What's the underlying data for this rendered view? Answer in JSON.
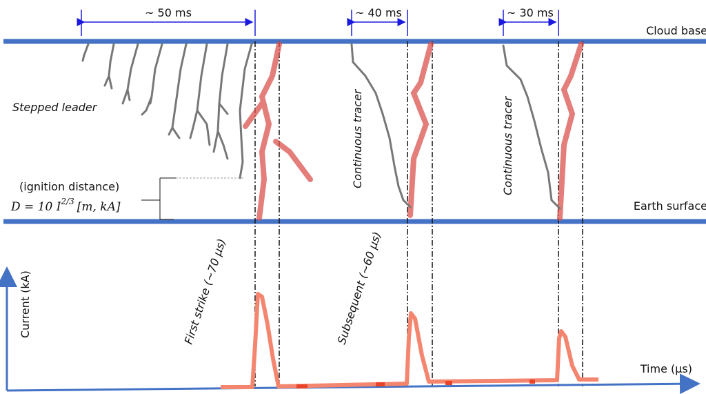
{
  "intervals": [
    "~ 50 ms",
    "~ 40 ms",
    "~ 30 ms"
  ],
  "levels": {
    "cloud": "Cloud base",
    "earth": "Earth surface"
  },
  "stepped_leader": "Stepped leader",
  "ignition": {
    "label": "(ignition distance)",
    "formula_lhs": "D = 10 I",
    "formula_exp": "2/3",
    "formula_units": "[m, kA]"
  },
  "tracers": [
    "Continuous tracer",
    "Continuous tracer"
  ],
  "strikes": [
    "First strike (~70 μs)",
    "Subsequent (~60 μs)"
  ],
  "axes": {
    "y": "Current (kA)",
    "x": "Time (μs)"
  }
}
